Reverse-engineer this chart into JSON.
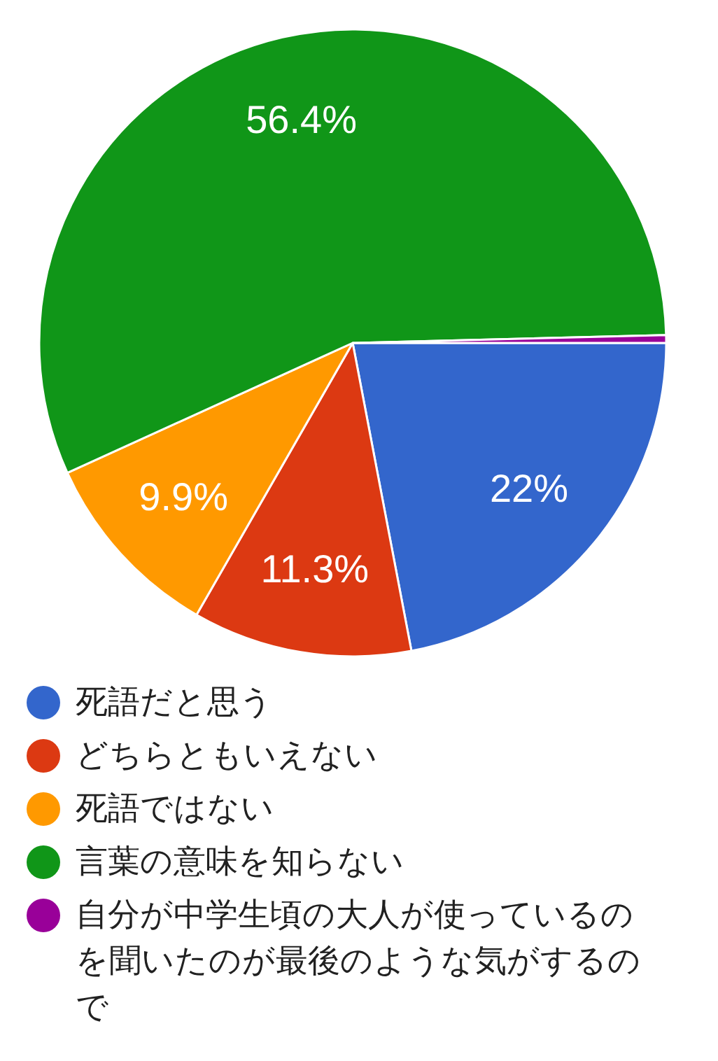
{
  "chart_data": {
    "type": "pie",
    "categories": [
      "死語だと思う",
      "どちらともいえない",
      "死語ではない",
      "言葉の意味を知らない",
      "自分が中学生頃の大人が使っているのを聞いたのが最後のような気がするので"
    ],
    "values": [
      22,
      11.3,
      9.9,
      56.4,
      0.4
    ],
    "colors": [
      "#3366cc",
      "#dc3912",
      "#ff9900",
      "#109618",
      "#990099"
    ],
    "value_labels": [
      "22%",
      "11.3%",
      "9.9%",
      "56.4%",
      null
    ],
    "legend": "bottom"
  }
}
